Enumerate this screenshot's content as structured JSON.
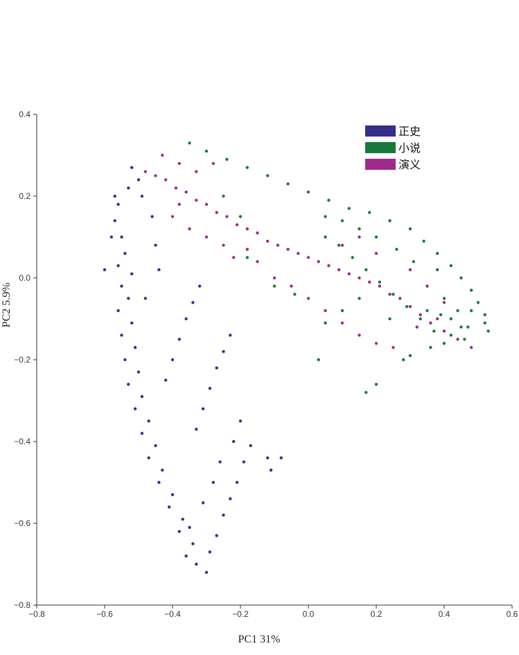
{
  "chart_data": {
    "type": "scatter",
    "title": "",
    "xlabel": "PC1 31%",
    "ylabel": "PC2 5.9%",
    "xlim": [
      -0.8,
      0.6
    ],
    "ylim": [
      -0.8,
      0.4
    ],
    "xticks": [
      -0.8,
      -0.6,
      -0.4,
      -0.2,
      0.0,
      0.2,
      0.4,
      0.6
    ],
    "xtick_labels": [
      "−0.8",
      "−0.6",
      "−0.4",
      "−0.2",
      "0.0",
      "0.2",
      "0.4",
      "0.6"
    ],
    "yticks": [
      -0.8,
      -0.6,
      -0.4,
      -0.2,
      0.0,
      0.2,
      0.4
    ],
    "ytick_labels": [
      "−0.8",
      "−0.6",
      "−0.4",
      "−0.2",
      "0.0",
      "0.2",
      "0.4"
    ],
    "grid": false,
    "legend_position": "top-right",
    "series": [
      {
        "name": "正史",
        "color": "#35308a",
        "points": [
          [
            -0.52,
            0.27
          ],
          [
            -0.53,
            0.22
          ],
          [
            -0.56,
            0.18
          ],
          [
            -0.57,
            0.14
          ],
          [
            -0.55,
            0.1
          ],
          [
            -0.54,
            0.06
          ],
          [
            -0.56,
            0.03
          ],
          [
            -0.52,
            0.01
          ],
          [
            -0.55,
            -0.02
          ],
          [
            -0.53,
            -0.05
          ],
          [
            -0.56,
            -0.08
          ],
          [
            -0.52,
            -0.11
          ],
          [
            -0.55,
            -0.14
          ],
          [
            -0.51,
            -0.17
          ],
          [
            -0.54,
            -0.2
          ],
          [
            -0.5,
            -0.23
          ],
          [
            -0.53,
            -0.26
          ],
          [
            -0.49,
            -0.29
          ],
          [
            -0.51,
            -0.32
          ],
          [
            -0.47,
            -0.35
          ],
          [
            -0.49,
            -0.38
          ],
          [
            -0.45,
            -0.41
          ],
          [
            -0.47,
            -0.44
          ],
          [
            -0.43,
            -0.47
          ],
          [
            -0.44,
            -0.5
          ],
          [
            -0.4,
            -0.53
          ],
          [
            -0.41,
            -0.56
          ],
          [
            -0.37,
            -0.59
          ],
          [
            -0.38,
            -0.62
          ],
          [
            -0.34,
            -0.65
          ],
          [
            -0.36,
            -0.68
          ],
          [
            -0.33,
            -0.7
          ],
          [
            -0.3,
            -0.72
          ],
          [
            -0.29,
            -0.67
          ],
          [
            -0.27,
            -0.63
          ],
          [
            -0.25,
            -0.58
          ],
          [
            -0.23,
            -0.54
          ],
          [
            -0.21,
            -0.5
          ],
          [
            -0.19,
            -0.45
          ],
          [
            -0.17,
            -0.41
          ],
          [
            -0.33,
            -0.37
          ],
          [
            -0.31,
            -0.32
          ],
          [
            -0.29,
            -0.27
          ],
          [
            -0.27,
            -0.22
          ],
          [
            -0.25,
            -0.18
          ],
          [
            -0.23,
            -0.14
          ],
          [
            -0.42,
            -0.25
          ],
          [
            -0.4,
            -0.2
          ],
          [
            -0.38,
            -0.15
          ],
          [
            -0.36,
            -0.1
          ],
          [
            -0.34,
            -0.06
          ],
          [
            -0.32,
            -0.02
          ],
          [
            -0.46,
            0.15
          ],
          [
            -0.45,
            0.08
          ],
          [
            -0.44,
            0.02
          ],
          [
            -0.48,
            -0.05
          ],
          [
            -0.6,
            0.02
          ],
          [
            -0.58,
            0.1
          ],
          [
            -0.57,
            0.2
          ],
          [
            -0.5,
            0.24
          ],
          [
            -0.49,
            0.2
          ],
          [
            -0.12,
            -0.44
          ],
          [
            -0.11,
            -0.47
          ],
          [
            -0.08,
            -0.44
          ],
          [
            -0.22,
            -0.4
          ],
          [
            -0.2,
            -0.35
          ],
          [
            -0.26,
            -0.45
          ],
          [
            -0.28,
            -0.5
          ],
          [
            -0.31,
            -0.55
          ],
          [
            -0.35,
            -0.61
          ]
        ]
      },
      {
        "name": "小说",
        "color": "#177a3a",
        "points": [
          [
            -0.35,
            0.33
          ],
          [
            -0.3,
            0.31
          ],
          [
            -0.24,
            0.29
          ],
          [
            -0.18,
            0.27
          ],
          [
            -0.12,
            0.25
          ],
          [
            -0.06,
            0.23
          ],
          [
            0.0,
            0.21
          ],
          [
            0.06,
            0.19
          ],
          [
            0.12,
            0.17
          ],
          [
            0.18,
            0.16
          ],
          [
            0.24,
            0.14
          ],
          [
            0.3,
            0.12
          ],
          [
            0.34,
            0.09
          ],
          [
            0.38,
            0.06
          ],
          [
            0.42,
            0.03
          ],
          [
            0.45,
            0.0
          ],
          [
            0.48,
            -0.03
          ],
          [
            0.5,
            -0.06
          ],
          [
            0.52,
            -0.09
          ],
          [
            0.47,
            -0.12
          ],
          [
            0.42,
            -0.14
          ],
          [
            0.37,
            -0.13
          ],
          [
            0.33,
            -0.1
          ],
          [
            0.29,
            -0.07
          ],
          [
            0.25,
            -0.04
          ],
          [
            0.21,
            -0.01
          ],
          [
            0.17,
            0.02
          ],
          [
            0.13,
            0.05
          ],
          [
            0.09,
            0.08
          ],
          [
            0.05,
            0.1
          ],
          [
            0.35,
            -0.02
          ],
          [
            0.4,
            -0.05
          ],
          [
            0.44,
            -0.08
          ],
          [
            0.38,
            0.02
          ],
          [
            0.31,
            0.04
          ],
          [
            0.26,
            0.07
          ],
          [
            0.2,
            0.1
          ],
          [
            0.15,
            0.12
          ],
          [
            0.1,
            0.14
          ],
          [
            0.05,
            0.15
          ],
          [
            0.15,
            -0.05
          ],
          [
            0.1,
            -0.08
          ],
          [
            0.05,
            -0.11
          ],
          [
            0.28,
            -0.2
          ],
          [
            0.2,
            -0.26
          ],
          [
            0.17,
            -0.28
          ],
          [
            0.03,
            -0.2
          ],
          [
            -0.18,
            0.05
          ],
          [
            -0.1,
            -0.02
          ],
          [
            -0.04,
            -0.04
          ],
          [
            -0.25,
            0.2
          ],
          [
            -0.2,
            0.15
          ],
          [
            0.52,
            -0.11
          ],
          [
            0.53,
            -0.13
          ],
          [
            0.46,
            -0.15
          ],
          [
            0.4,
            -0.16
          ],
          [
            0.36,
            -0.17
          ],
          [
            0.3,
            -0.19
          ],
          [
            0.24,
            -0.1
          ],
          [
            0.35,
            -0.08
          ],
          [
            0.42,
            -0.1
          ],
          [
            0.48,
            -0.08
          ],
          [
            0.45,
            -0.12
          ],
          [
            0.39,
            -0.09
          ]
        ]
      },
      {
        "name": "演义",
        "color": "#a0298e",
        "points": [
          [
            -0.48,
            0.26
          ],
          [
            -0.45,
            0.25
          ],
          [
            -0.42,
            0.24
          ],
          [
            -0.39,
            0.22
          ],
          [
            -0.36,
            0.21
          ],
          [
            -0.33,
            0.19
          ],
          [
            -0.3,
            0.18
          ],
          [
            -0.27,
            0.16
          ],
          [
            -0.24,
            0.15
          ],
          [
            -0.21,
            0.13
          ],
          [
            -0.18,
            0.12
          ],
          [
            -0.15,
            0.11
          ],
          [
            -0.12,
            0.09
          ],
          [
            -0.09,
            0.08
          ],
          [
            -0.06,
            0.07
          ],
          [
            -0.03,
            0.06
          ],
          [
            0.0,
            0.05
          ],
          [
            0.03,
            0.04
          ],
          [
            0.06,
            0.03
          ],
          [
            0.09,
            0.02
          ],
          [
            0.12,
            0.01
          ],
          [
            0.15,
            0.0
          ],
          [
            0.18,
            -0.01
          ],
          [
            0.21,
            -0.02
          ],
          [
            0.24,
            -0.04
          ],
          [
            0.27,
            -0.05
          ],
          [
            0.3,
            -0.07
          ],
          [
            0.33,
            -0.09
          ],
          [
            0.36,
            -0.11
          ],
          [
            0.4,
            -0.13
          ],
          [
            0.44,
            -0.15
          ],
          [
            0.48,
            -0.17
          ],
          [
            -0.22,
            0.05
          ],
          [
            -0.18,
            0.07
          ],
          [
            -0.15,
            0.04
          ],
          [
            -0.1,
            0.0
          ],
          [
            -0.05,
            -0.02
          ],
          [
            0.0,
            -0.05
          ],
          [
            0.05,
            -0.08
          ],
          [
            0.1,
            -0.11
          ],
          [
            0.15,
            -0.14
          ],
          [
            0.2,
            -0.16
          ],
          [
            0.25,
            -0.17
          ],
          [
            -0.4,
            0.15
          ],
          [
            -0.38,
            0.18
          ],
          [
            -0.35,
            0.12
          ],
          [
            -0.3,
            0.1
          ],
          [
            -0.25,
            0.08
          ],
          [
            -0.28,
            0.28
          ],
          [
            -0.33,
            0.26
          ],
          [
            -0.38,
            0.28
          ],
          [
            -0.43,
            0.3
          ],
          [
            0.1,
            0.08
          ],
          [
            0.15,
            0.1
          ],
          [
            0.2,
            0.06
          ],
          [
            0.3,
            0.02
          ],
          [
            0.35,
            -0.02
          ],
          [
            0.4,
            -0.06
          ],
          [
            0.38,
            -0.1
          ],
          [
            0.32,
            -0.12
          ]
        ]
      }
    ]
  }
}
